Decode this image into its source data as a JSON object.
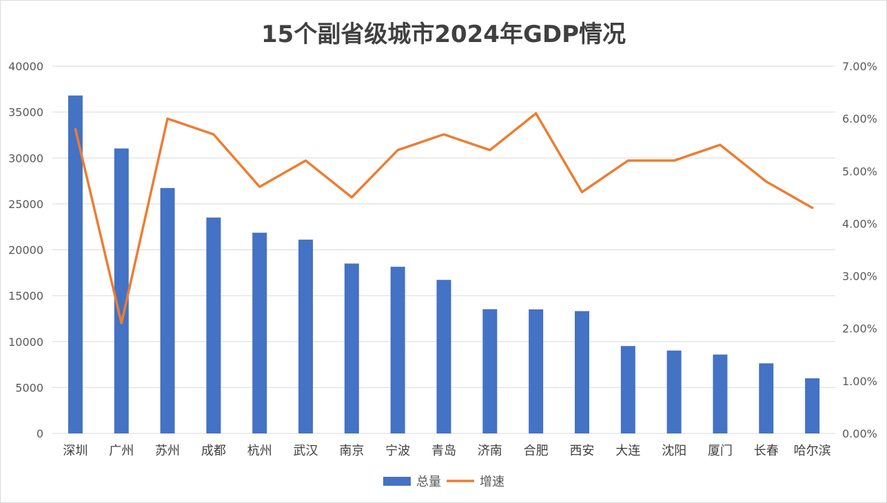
{
  "chart_data": {
    "type": "bar+line",
    "title": "15个副省级城市2024年GDP情况",
    "categories": [
      "深圳",
      "广州",
      "苏州",
      "成都",
      "杭州",
      "武汉",
      "南京",
      "宁波",
      "青岛",
      "济南",
      "合肥",
      "西安",
      "大连",
      "沈阳",
      "厦门",
      "长春",
      "哈尔滨"
    ],
    "series": [
      {
        "name": "总量",
        "type": "bar",
        "axis": "left",
        "color": "#4472C4",
        "values": [
          36802,
          31033,
          26727,
          23511,
          21860,
          21106,
          18501,
          18148,
          16720,
          13528,
          13507,
          13318,
          9517,
          9027,
          8589,
          7632,
          6001
        ]
      },
      {
        "name": "增速",
        "type": "line",
        "axis": "right",
        "color": "#ED7D31",
        "values": [
          5.8,
          2.1,
          6.0,
          5.7,
          4.7,
          5.2,
          4.5,
          5.4,
          5.7,
          5.4,
          6.1,
          4.6,
          5.2,
          5.2,
          5.5,
          4.8,
          4.3
        ]
      }
    ],
    "y_left": {
      "min": 0,
      "max": 40000,
      "ticks": [
        "0",
        "5000",
        "10000",
        "15000",
        "20000",
        "25000",
        "30000",
        "35000",
        "40000"
      ]
    },
    "y_right": {
      "min": 0,
      "max": 7,
      "ticks": [
        "0.00%",
        "1.00%",
        "2.00%",
        "3.00%",
        "4.00%",
        "5.00%",
        "6.00%",
        "7.00%"
      ]
    },
    "grid": true,
    "legend_position": "bottom"
  }
}
